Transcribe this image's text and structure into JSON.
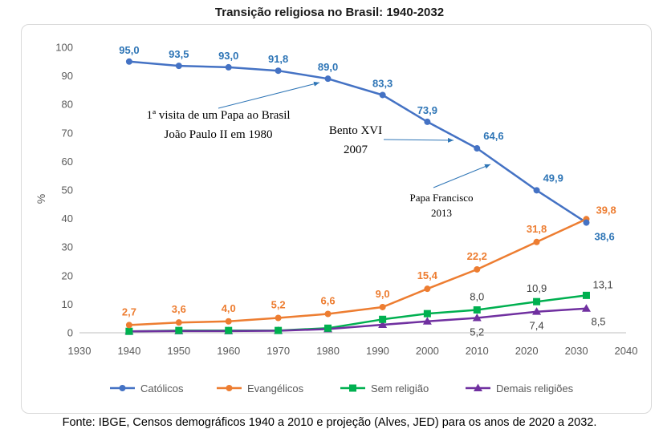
{
  "chart_data": {
    "type": "line",
    "title": "Transição religiosa no Brasil: 1940-2032",
    "ylabel": "%",
    "xlabel": "",
    "xlim": [
      1930,
      2040
    ],
    "ylim": [
      0,
      100
    ],
    "x_ticks": [
      1930,
      1940,
      1950,
      1960,
      1970,
      1980,
      1990,
      2000,
      2010,
      2020,
      2030,
      2040
    ],
    "y_ticks": [
      0,
      10,
      20,
      30,
      40,
      50,
      60,
      70,
      80,
      90,
      100
    ],
    "grid": false,
    "legend_position": "bottom",
    "x": [
      1940,
      1950,
      1960,
      1970,
      1980,
      1991,
      2000,
      2010,
      2022,
      2032
    ],
    "series": [
      {
        "name": "Católicos",
        "color": "#4472C4",
        "marker": "circle",
        "values": [
          95.0,
          93.5,
          93.0,
          91.8,
          89.0,
          83.3,
          73.9,
          64.6,
          49.9,
          38.6
        ],
        "labels": [
          "95,0",
          "93,5",
          "93,0",
          "91,8",
          "89,0",
          "83,3",
          "73,9",
          "64,6",
          "49,9",
          "38,6"
        ],
        "label_color": "#2E75B6"
      },
      {
        "name": "Evangélicos",
        "color": "#ED7D31",
        "marker": "circle",
        "values": [
          2.7,
          3.6,
          4.0,
          5.2,
          6.6,
          9.0,
          15.4,
          22.2,
          31.8,
          39.8
        ],
        "labels": [
          "2,7",
          "3,6",
          "4,0",
          "5,2",
          "6,6",
          "9,0",
          "15,4",
          "22,2",
          "31,8",
          "39,8"
        ],
        "label_color": "#ED7D31"
      },
      {
        "name": "Sem religião",
        "color": "#00B050",
        "marker": "square",
        "values": [
          0.5,
          0.8,
          0.8,
          0.8,
          1.6,
          4.7,
          6.7,
          8.0,
          10.9,
          13.1
        ],
        "labels": [
          "",
          "",
          "",
          "",
          "",
          "",
          "",
          "8,0",
          "10,9",
          "13,1"
        ],
        "label_color": "#404040"
      },
      {
        "name": "Demais religiões",
        "color": "#7030A0",
        "marker": "triangle",
        "values": [
          0.5,
          0.6,
          0.6,
          0.7,
          1.3,
          2.8,
          4.0,
          5.2,
          7.4,
          8.5
        ],
        "labels": [
          "",
          "",
          "",
          "",
          "",
          "",
          "",
          "5,2",
          "7,4",
          "8,5"
        ],
        "label_color": "#404040"
      }
    ],
    "annotations": [
      {
        "lines": [
          "1ª visita de um Papa ao Brasil",
          "João Paulo II em 1980"
        ]
      },
      {
        "lines": [
          "Bento XVI",
          "2007"
        ]
      },
      {
        "lines": [
          "Papa Francisco",
          "2013"
        ]
      }
    ]
  },
  "source_note": "Fonte: IBGE, Censos demográficos 1940 a 2010 e projeção (Alves, JED) para os anos de 2020 a 2032."
}
